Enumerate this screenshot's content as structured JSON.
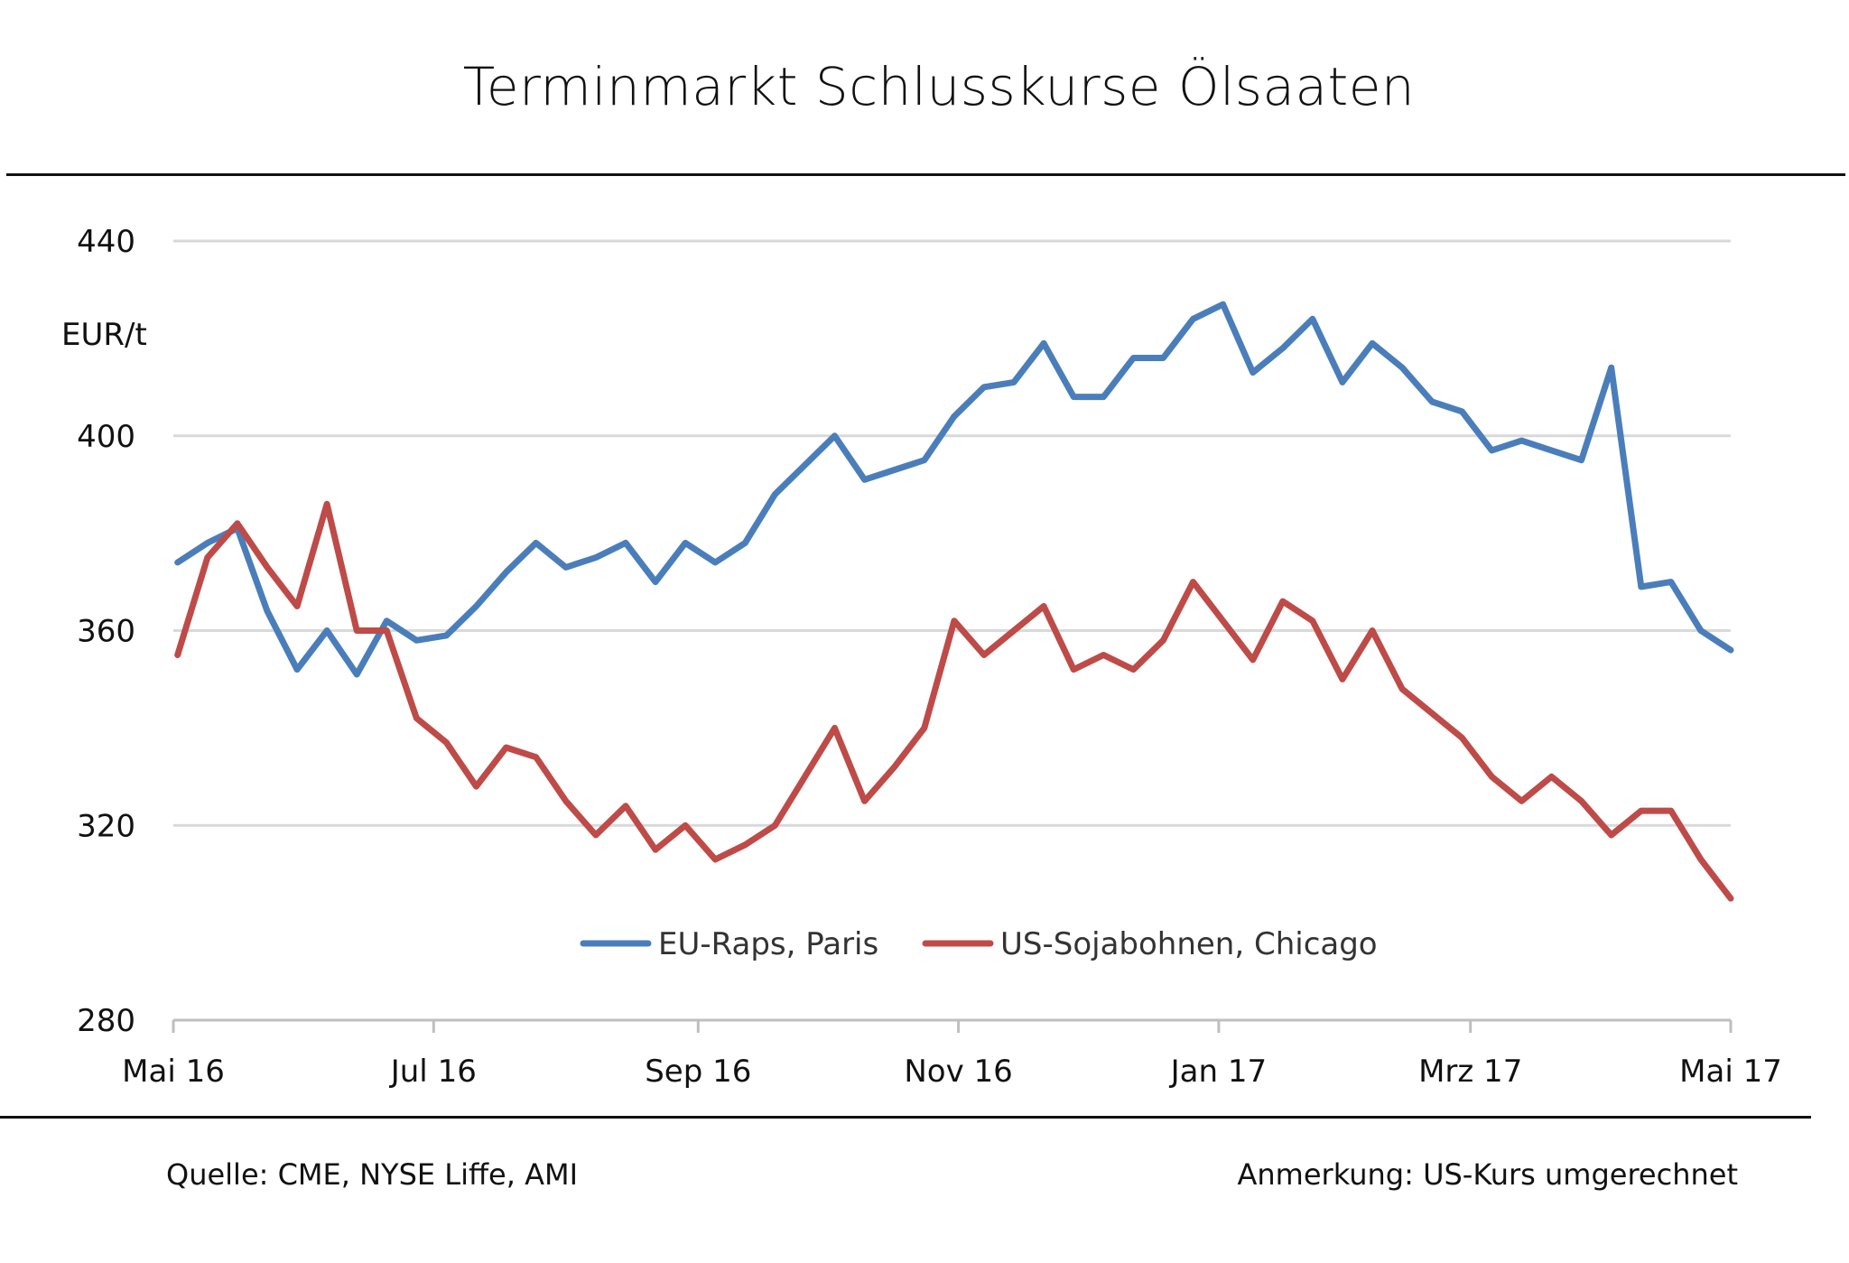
{
  "chart_data": {
    "type": "line",
    "title": "Terminmarkt Schlusskurse Ölsaaten",
    "ylabel": "EUR/t",
    "ylim": [
      280,
      440
    ],
    "yticks": [
      280,
      320,
      360,
      400,
      440
    ],
    "xlim": [
      "2016-05-01",
      "2017-05-01"
    ],
    "xticks": [
      {
        "date": "2016-05-01",
        "label": "Mai 16"
      },
      {
        "date": "2016-07-01",
        "label": "Jul 16"
      },
      {
        "date": "2016-09-01",
        "label": "Sep 16"
      },
      {
        "date": "2016-11-01",
        "label": "Nov 16"
      },
      {
        "date": "2017-01-01",
        "label": "Jan 17"
      },
      {
        "date": "2017-03-01",
        "label": "Mrz 17"
      },
      {
        "date": "2017-05-01",
        "label": "Mai 17"
      }
    ],
    "grid": "horizontal",
    "legend_position": "bottom-center",
    "x": [
      "2016-05-02",
      "2016-05-09",
      "2016-05-16",
      "2016-05-23",
      "2016-05-30",
      "2016-06-06",
      "2016-06-13",
      "2016-06-20",
      "2016-06-27",
      "2016-07-04",
      "2016-07-11",
      "2016-07-18",
      "2016-07-25",
      "2016-08-01",
      "2016-08-08",
      "2016-08-15",
      "2016-08-22",
      "2016-08-29",
      "2016-09-05",
      "2016-09-12",
      "2016-09-19",
      "2016-09-26",
      "2016-10-03",
      "2016-10-10",
      "2016-10-17",
      "2016-10-24",
      "2016-10-31",
      "2016-11-07",
      "2016-11-14",
      "2016-11-21",
      "2016-11-28",
      "2016-12-05",
      "2016-12-12",
      "2016-12-19",
      "2016-12-26",
      "2017-01-02",
      "2017-01-09",
      "2017-01-16",
      "2017-01-23",
      "2017-01-30",
      "2017-02-06",
      "2017-02-13",
      "2017-02-20",
      "2017-02-27",
      "2017-03-06",
      "2017-03-13",
      "2017-03-20",
      "2017-03-27",
      "2017-04-03",
      "2017-04-10",
      "2017-04-17",
      "2017-04-24",
      "2017-05-01"
    ],
    "series": [
      {
        "name": "EU-Raps, Paris",
        "color": "#4a7ebb",
        "values": [
          374,
          378,
          381,
          364,
          352,
          360,
          351,
          362,
          358,
          359,
          365,
          372,
          378,
          373,
          375,
          378,
          370,
          378,
          374,
          378,
          388,
          394,
          400,
          391,
          393,
          395,
          404,
          410,
          411,
          419,
          408,
          408,
          416,
          416,
          424,
          427,
          413,
          418,
          424,
          411,
          419,
          414,
          407,
          405,
          397,
          399,
          397,
          395,
          414,
          369,
          370,
          360,
          356
        ]
      },
      {
        "name": "US-Sojabohnen, Chicago",
        "color": "#be4b48",
        "values": [
          355,
          375,
          382,
          373,
          365,
          386,
          360,
          360,
          342,
          337,
          328,
          336,
          334,
          325,
          318,
          324,
          315,
          320,
          313,
          316,
          320,
          330,
          340,
          325,
          332,
          340,
          362,
          355,
          360,
          365,
          352,
          355,
          352,
          358,
          370,
          362,
          354,
          366,
          362,
          350,
          360,
          348,
          343,
          338,
          330,
          325,
          330,
          325,
          318,
          323,
          323,
          313,
          305
        ]
      }
    ]
  },
  "footer": {
    "source": "Quelle:  CME, NYSE Liffe, AMI",
    "note": "Anmerkung:  US-Kurs umgerechnet"
  },
  "colors": {
    "gridline": "#d9d9d9",
    "axis": "#bfbfbf"
  }
}
